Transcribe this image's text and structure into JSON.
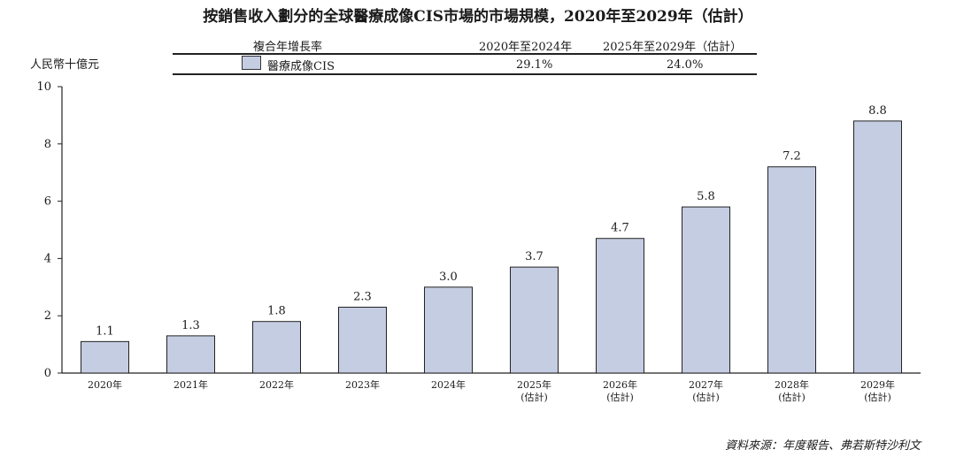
{
  "chart_data": {
    "type": "bar",
    "title": "按銷售收入劃分的全球醫療成像CIS市場的市場規模，2020年至2029年（估計）",
    "ylabel": "人民幣十億元",
    "categories": [
      "2020年",
      "2021年",
      "2022年",
      "2023年",
      "2024年",
      "2025年",
      "2026年",
      "2027年",
      "2028年",
      "2029年"
    ],
    "category_notes": [
      "",
      "",
      "",
      "",
      "",
      "(估計)",
      "(估計)",
      "(估計)",
      "(估計)",
      "(估計)"
    ],
    "series": [
      {
        "name": "醫療成像CIS",
        "values": [
          1.1,
          1.3,
          1.8,
          2.3,
          3.0,
          3.7,
          4.7,
          5.8,
          7.2,
          8.8
        ],
        "color": "#c5cde3"
      }
    ],
    "data_labels": [
      "1.1",
      "1.3",
      "1.8",
      "2.3",
      "3.0",
      "3.7",
      "4.7",
      "5.8",
      "7.2",
      "8.8"
    ],
    "ylim": [
      0,
      10
    ],
    "yticks": [
      0,
      2,
      4,
      6,
      8,
      10
    ],
    "grid": false,
    "legend_position": "top"
  },
  "cagr_table": {
    "header": "複合年增長率",
    "col1": "2020年至2024年",
    "col2": "2025年至2029年（估計）",
    "row_label": "醫療成像CIS",
    "val1": "29.1%",
    "val2": "24.0%"
  },
  "source": "資料來源：年度報告、弗若斯特沙利文"
}
